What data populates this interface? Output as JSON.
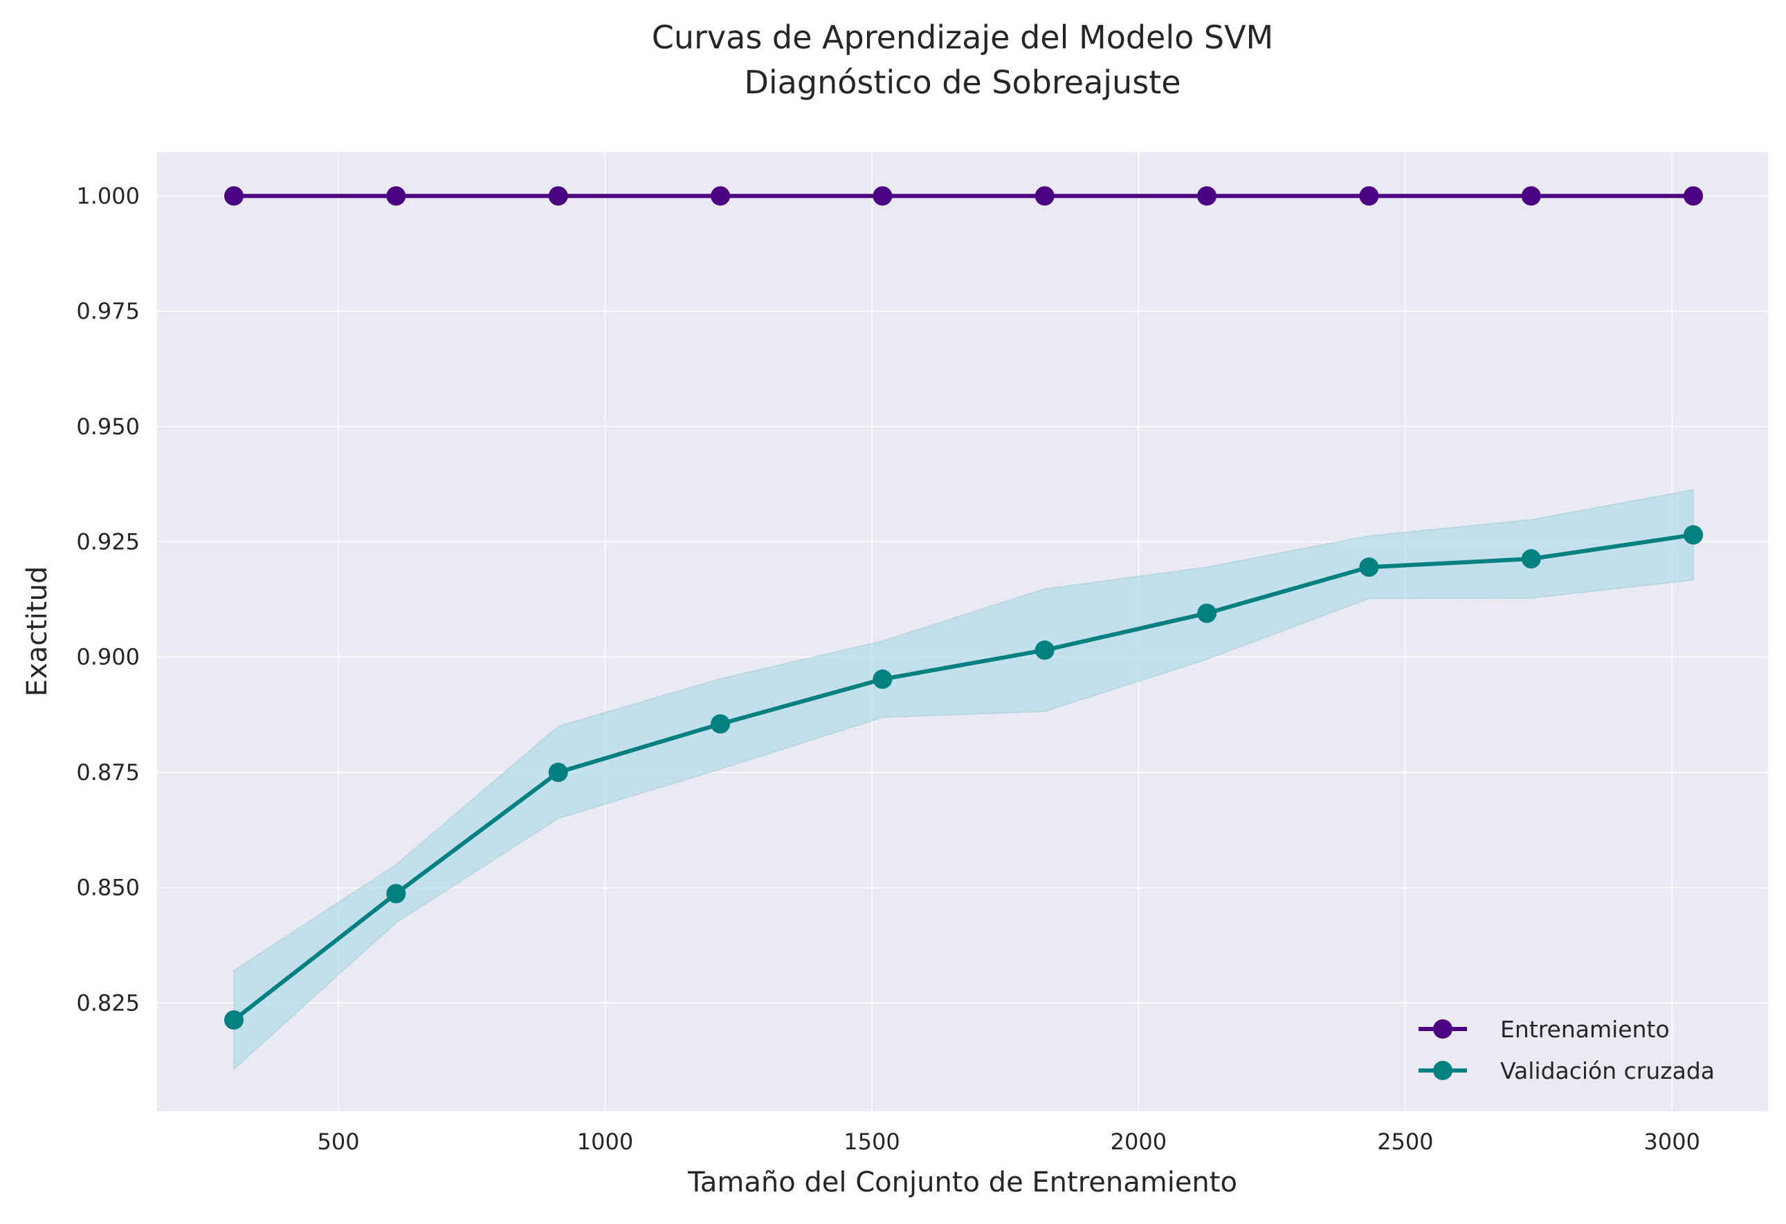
{
  "chart_data": {
    "type": "line",
    "title": [
      "Curvas de Aprendizaje del Modelo SVM",
      "Diagnóstico de Sobreajuste"
    ],
    "xlabel": "Tamaño del Conjunto de Entrenamiento",
    "ylabel": "Exactitud",
    "xlim": [
      160,
      3180
    ],
    "ylim": [
      0.8015,
      1.0095
    ],
    "xticks": [
      500,
      1000,
      1500,
      2000,
      2500,
      3000
    ],
    "xtick_labels": [
      "500",
      "1000",
      "1500",
      "2000",
      "2500",
      "3000"
    ],
    "yticks": [
      0.825,
      0.85,
      0.875,
      0.9,
      0.925,
      0.95,
      0.975,
      1.0
    ],
    "ytick_labels": [
      "0.825",
      "0.850",
      "0.875",
      "0.900",
      "0.925",
      "0.950",
      "0.975",
      "1.000"
    ],
    "grid": true,
    "legend_position": "bottom-right",
    "x": [
      304,
      608,
      912,
      1216,
      1520,
      1824,
      2128,
      2432,
      2736,
      3040
    ],
    "series": [
      {
        "name": "Entrenamiento",
        "color": "#4b0082",
        "values": [
          1.0,
          1.0,
          1.0,
          1.0,
          1.0,
          1.0,
          1.0,
          1.0,
          1.0,
          1.0
        ]
      },
      {
        "name": "Validación cruzada",
        "color": "#008080",
        "band_color": "#add8e6",
        "values": [
          0.8213,
          0.8487,
          0.875,
          0.8855,
          0.8952,
          0.9015,
          0.9095,
          0.9195,
          0.9213,
          0.9265
        ],
        "band_upper": [
          0.832,
          0.855,
          0.885,
          0.8953,
          0.9035,
          0.9148,
          0.9195,
          0.9263,
          0.9298,
          0.9363
        ],
        "band_lower": [
          0.8106,
          0.8424,
          0.865,
          0.8757,
          0.8869,
          0.8882,
          0.8995,
          0.9127,
          0.9128,
          0.9167
        ]
      }
    ]
  }
}
